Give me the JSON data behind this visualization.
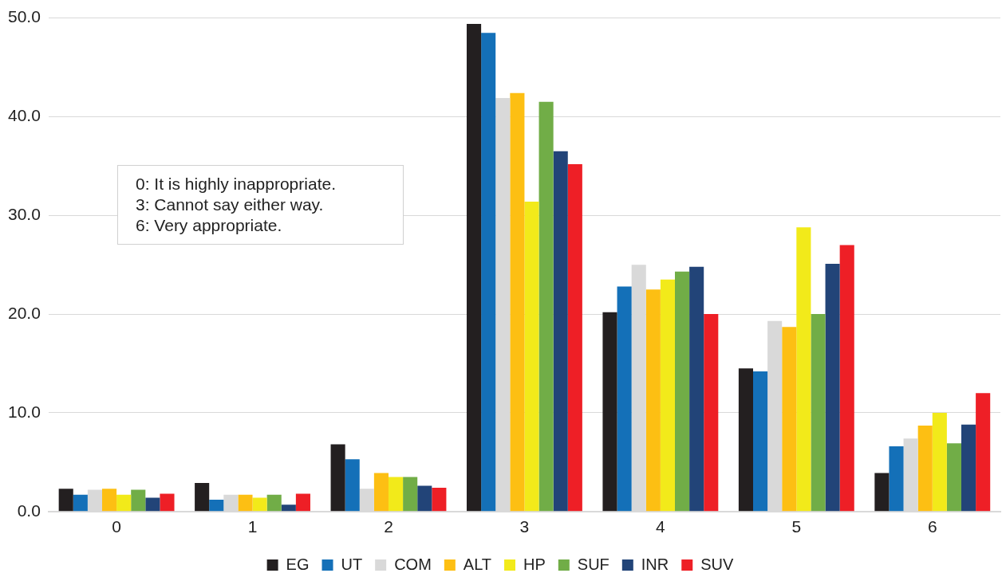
{
  "chart_data": {
    "type": "bar",
    "categories": [
      "0",
      "1",
      "2",
      "3",
      "4",
      "5",
      "6"
    ],
    "series": [
      {
        "name": "EG",
        "color": "#231f20",
        "values": [
          2.3,
          2.9,
          6.8,
          49.4,
          20.2,
          14.5,
          3.9
        ]
      },
      {
        "name": "UT",
        "color": "#1470b8",
        "values": [
          1.7,
          1.2,
          5.3,
          48.5,
          22.8,
          14.2,
          6.6
        ]
      },
      {
        "name": "COM",
        "color": "#d9d9d9",
        "values": [
          2.2,
          1.7,
          2.3,
          41.9,
          25.0,
          19.3,
          7.4
        ]
      },
      {
        "name": "ALT",
        "color": "#fdbf13",
        "values": [
          2.3,
          1.7,
          3.9,
          42.4,
          22.5,
          18.7,
          8.7
        ]
      },
      {
        "name": "HP",
        "color": "#f2ea1a",
        "values": [
          1.7,
          1.4,
          3.5,
          31.4,
          23.5,
          28.8,
          10.0
        ]
      },
      {
        "name": "SUF",
        "color": "#71ad47",
        "values": [
          2.2,
          1.7,
          3.5,
          41.5,
          24.3,
          20.0,
          6.9
        ]
      },
      {
        "name": "INR",
        "color": "#224478",
        "values": [
          1.4,
          0.7,
          2.6,
          36.5,
          24.8,
          25.1,
          8.8
        ]
      },
      {
        "name": "SUV",
        "color": "#ee1f26",
        "values": [
          1.8,
          1.8,
          2.4,
          35.2,
          20.0,
          27.0,
          12.0
        ]
      }
    ],
    "ylim": [
      0,
      50
    ],
    "yticks": [
      {
        "value": 0,
        "label": "0.0"
      },
      {
        "value": 10,
        "label": "10.0"
      },
      {
        "value": 20,
        "label": "20.0"
      },
      {
        "value": 30,
        "label": "30.0"
      },
      {
        "value": 40,
        "label": "40.0"
      },
      {
        "value": 50,
        "label": "50.0"
      }
    ],
    "grid": "y",
    "legend": "bottom",
    "annotations": [
      "0: It is highly inappropriate.",
      "3: Cannot say either way.",
      "6: Very appropriate."
    ]
  }
}
